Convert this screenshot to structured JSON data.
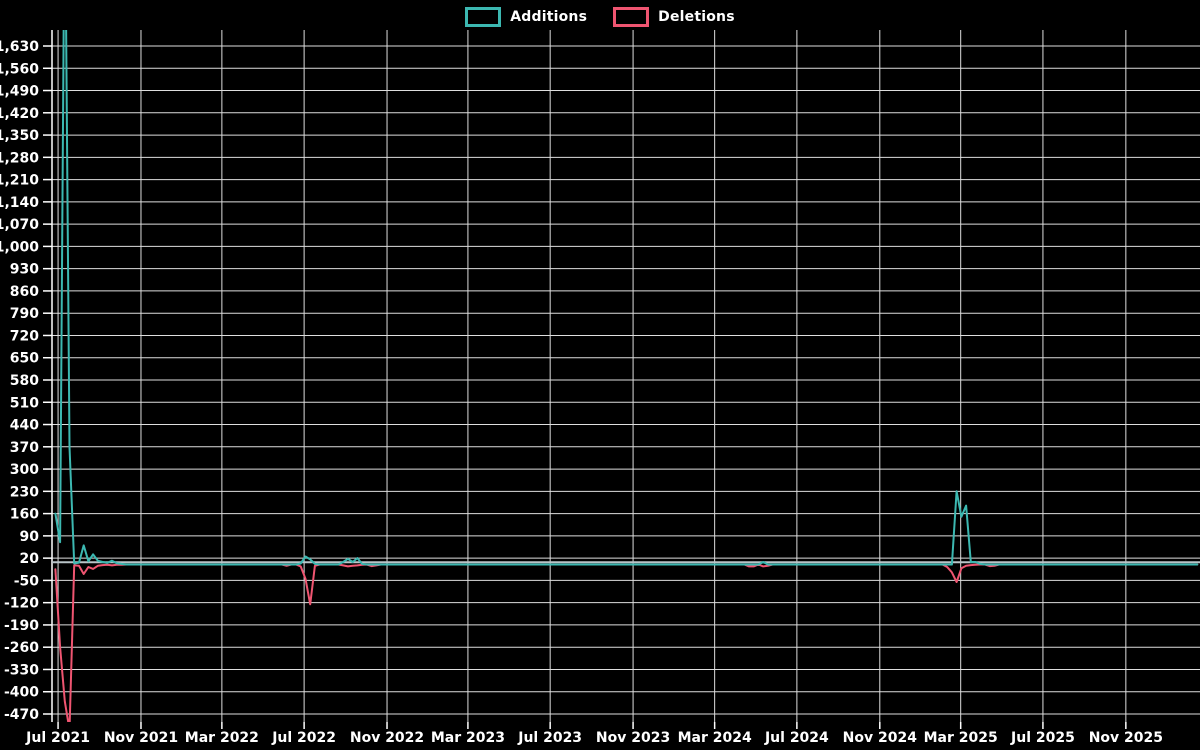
{
  "legend": {
    "items": [
      {
        "id": "additions",
        "label": "Additions",
        "color": "#3cb8b1"
      },
      {
        "id": "deletions",
        "label": "Deletions",
        "color": "#ef5571"
      }
    ]
  },
  "chart_data": {
    "type": "line",
    "title": "",
    "xlabel": "",
    "ylabel": "",
    "background": "#000000",
    "grid": true,
    "grid_color": "#dedede",
    "axis_color": "#ffffff",
    "label_color": "#ffffff",
    "zero_overlay": {
      "value": 7,
      "color": "#b9c4c8"
    },
    "legend_position": "top-center",
    "series": [
      {
        "name": "Additions",
        "color": "#3cb8b1"
      },
      {
        "name": "Deletions",
        "color": "#ef5571"
      }
    ],
    "y_ticks": [
      1630,
      1560,
      1490,
      1420,
      1350,
      1280,
      1210,
      1140,
      1070,
      1000,
      930,
      860,
      790,
      720,
      650,
      580,
      510,
      440,
      370,
      300,
      230,
      160,
      90,
      20,
      -50,
      -120,
      -190,
      -260,
      -330,
      -400,
      -470
    ],
    "x_ticks": [
      {
        "label": "Jul 2021",
        "date": "2021-07-01"
      },
      {
        "label": "Nov 2021",
        "date": "2021-11-01"
      },
      {
        "label": "Mar 2022",
        "date": "2022-03-01"
      },
      {
        "label": "Jul 2022",
        "date": "2022-07-01"
      },
      {
        "label": "Nov 2022",
        "date": "2022-11-01"
      },
      {
        "label": "Mar 2023",
        "date": "2023-03-01"
      },
      {
        "label": "Jul 2023",
        "date": "2023-07-01"
      },
      {
        "label": "Nov 2023",
        "date": "2023-11-01"
      },
      {
        "label": "Mar 2024",
        "date": "2024-03-01"
      },
      {
        "label": "Jul 2024",
        "date": "2024-07-01"
      },
      {
        "label": "Nov 2024",
        "date": "2024-11-01"
      },
      {
        "label": "Mar 2025",
        "date": "2025-03-01"
      },
      {
        "label": "Jul 2025",
        "date": "2025-07-01"
      },
      {
        "label": "Nov 2025",
        "date": "2025-11-01"
      }
    ],
    "x_domain": [
      "2021-06-22",
      "2026-02-19"
    ],
    "weekly": {
      "start": "2021-06-27",
      "end": "2026-02-15",
      "default": [
        0,
        0
      ],
      "points": {
        "2021-06-27": [
          160,
          -15
        ],
        "2021-07-04": [
          70,
          -260
        ],
        "2021-07-11": [
          2200,
          -430
        ],
        "2021-07-18": [
          370,
          -520
        ],
        "2021-07-25": [
          3,
          -3
        ],
        "2021-08-01": [
          6,
          -4
        ],
        "2021-08-08": [
          60,
          -30
        ],
        "2021-08-15": [
          10,
          -8
        ],
        "2021-08-22": [
          32,
          -14
        ],
        "2021-08-29": [
          12,
          -4
        ],
        "2021-09-05": [
          8,
          -2
        ],
        "2021-09-12": [
          5,
          -1
        ],
        "2021-09-19": [
          12,
          -3
        ],
        "2021-09-26": [
          4,
          -1
        ],
        "2021-10-03": [
          2,
          -1
        ],
        "2022-06-05": [
          0,
          -4
        ],
        "2022-06-26": [
          3,
          -6
        ],
        "2022-07-03": [
          25,
          -45
        ],
        "2022-07-10": [
          16,
          -125
        ],
        "2022-07-17": [
          2,
          -4
        ],
        "2022-08-28": [
          8,
          -3
        ],
        "2022-09-04": [
          18,
          -6
        ],
        "2022-09-11": [
          8,
          -4
        ],
        "2022-09-18": [
          20,
          -3
        ],
        "2022-09-25": [
          2,
          -1
        ],
        "2022-10-09": [
          0,
          -5
        ],
        "2022-10-16": [
          0,
          -3
        ],
        "2024-04-21": [
          0,
          -6
        ],
        "2024-04-28": [
          0,
          -6
        ],
        "2024-05-12": [
          8,
          -6
        ],
        "2024-05-19": [
          0,
          -4
        ],
        "2025-02-09": [
          0,
          -8
        ],
        "2025-02-16": [
          0,
          -25
        ],
        "2025-02-23": [
          230,
          -55
        ],
        "2025-03-02": [
          150,
          -12
        ],
        "2025-03-09": [
          185,
          -4
        ],
        "2025-03-16": [
          8,
          -2
        ],
        "2025-03-23": [
          8,
          -1
        ],
        "2025-03-30": [
          2,
          0
        ],
        "2025-04-13": [
          0,
          -5
        ],
        "2025-04-20": [
          0,
          -4
        ]
      },
      "notes": "Values are weekly additions (positive) and deletions (negative). The Jul 2021 additions spike and deletions dip extend beyond the visible axis range and are clipped at the plot edges (> 1,630 and < -470)."
    }
  }
}
